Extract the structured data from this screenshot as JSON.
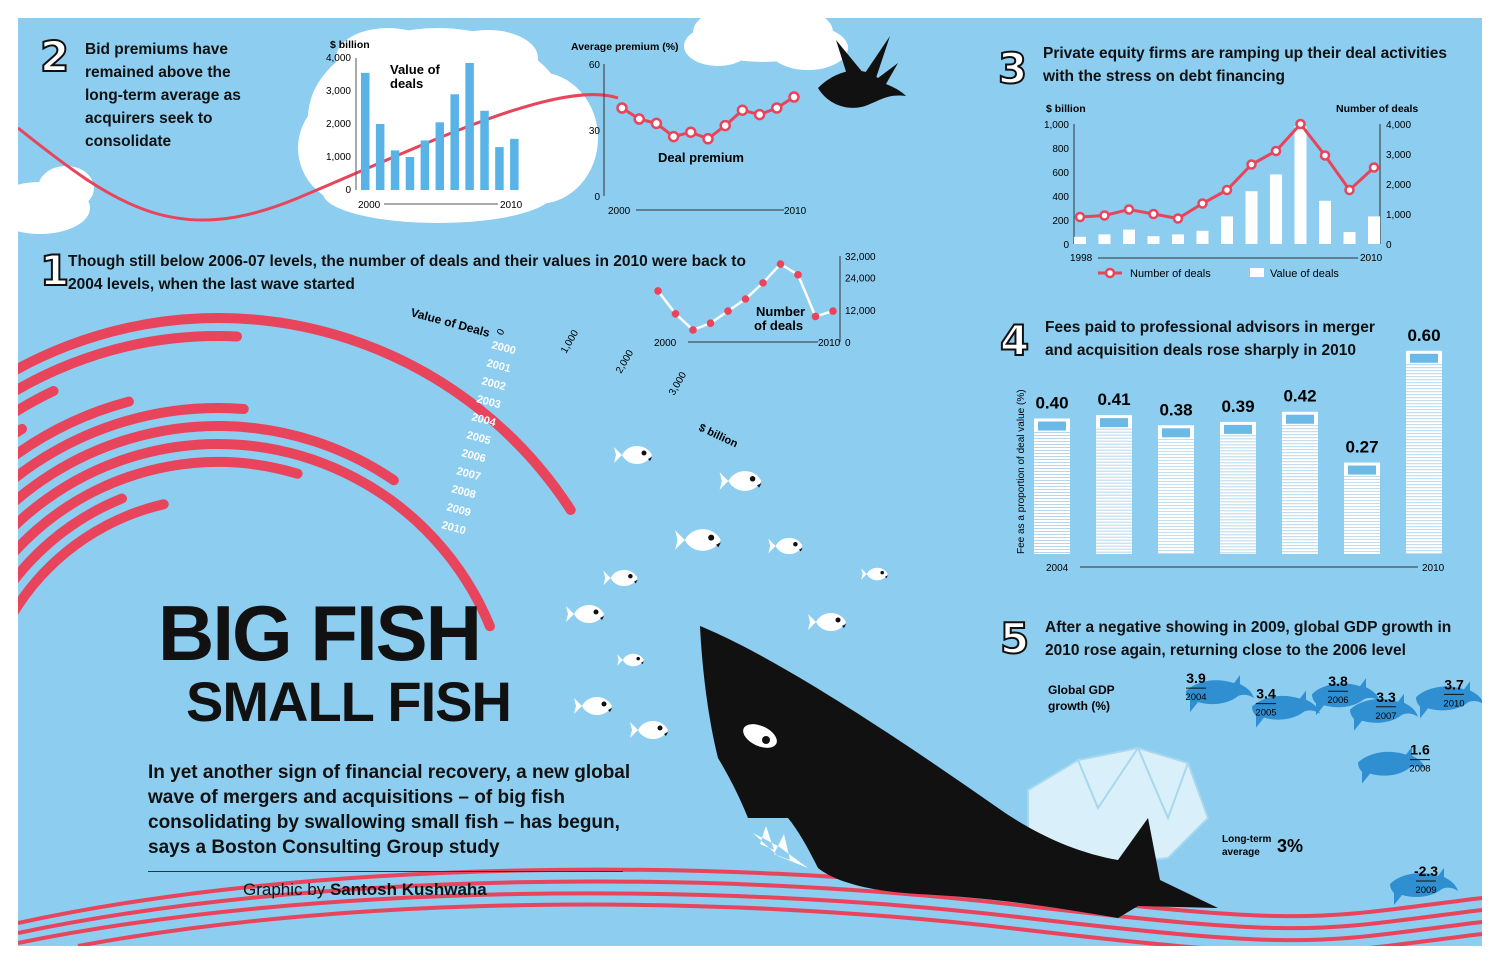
{
  "title": {
    "line1": "BIG FISH",
    "line2": "SMALL FISH"
  },
  "intro": "In yet another sign of financial recovery, a new global wave of mergers and acquisitions – of big fish consolidating by swallowing small fish – has begun, says a Boston Consulting Group study",
  "credit": {
    "prefix": "Graphic by",
    "name": "Santosh Kushwaha"
  },
  "sections": {
    "s1": {
      "number": "1",
      "text": "Though still below 2006-07 levels, the number of deals and their values in 2010 were back to 2004 levels, when the last wave started"
    },
    "s2": {
      "number": "2",
      "text": "Bid premiums have remained above the long-term average as acquirers seek to consolidate"
    },
    "s3": {
      "number": "3",
      "text": "Private equity firms are ramping up their deal activities with the stress on debt financing"
    },
    "s4": {
      "number": "4",
      "text": "Fees paid to professional advisors in merger and acquisition deals rose sharply in 2010"
    },
    "s5": {
      "number": "5",
      "text": "After a negative showing in 2009, global GDP growth in 2010 rose again, returning close to the 2006 level"
    }
  },
  "colors": {
    "background": "#8ccdf0",
    "red": "#e8445c",
    "ink": "#111111",
    "dolphin": "#2f8fd0",
    "white": "#ffffff"
  },
  "chart_data": [
    {
      "id": "value_of_deals_bar",
      "type": "bar",
      "title": "Value of deals",
      "ylabel": "$ billion",
      "x_start_label": "2000",
      "x_end_label": "2010",
      "categories": [
        "2000",
        "2001",
        "2002",
        "2003",
        "2004",
        "2005",
        "2006",
        "2007",
        "2008",
        "2009",
        "2010"
      ],
      "values": [
        3550,
        2000,
        1200,
        1000,
        1500,
        2050,
        2900,
        3850,
        2400,
        1300,
        1550
      ],
      "yticks": [
        "0",
        "1,000",
        "2,000",
        "3,000",
        "4,000"
      ],
      "ylim": [
        0,
        4000
      ]
    },
    {
      "id": "deal_premium_line",
      "type": "line",
      "title": "Average premium (%)",
      "series_label": "Deal premium",
      "x_start_label": "2000",
      "x_end_label": "2010",
      "categories": [
        "2000",
        "2001",
        "2002",
        "2003",
        "2004",
        "2005",
        "2006",
        "2007",
        "2008",
        "2009",
        "2010"
      ],
      "values": [
        40,
        35,
        33,
        27,
        29,
        26,
        32,
        39,
        37,
        40,
        45
      ],
      "yticks": [
        "0",
        "30",
        "60"
      ],
      "ylim": [
        0,
        60
      ]
    },
    {
      "id": "number_of_deals_line",
      "type": "line",
      "series_label": "Number of deals",
      "x_start_label": "2000",
      "x_end_label": "2010",
      "categories": [
        "2000",
        "2001",
        "2002",
        "2003",
        "2004",
        "2005",
        "2006",
        "2007",
        "2008",
        "2009",
        "2010"
      ],
      "values": [
        19000,
        10500,
        4500,
        7000,
        11500,
        16000,
        22000,
        29000,
        25000,
        9500,
        11500
      ],
      "yticks": [
        "0",
        "12,000",
        "24,000",
        "32,000"
      ],
      "ylim": [
        0,
        32000
      ]
    },
    {
      "id": "value_of_deals_arcs",
      "type": "bar",
      "title": "Value of Deals",
      "unit": "$ billion",
      "categories": [
        "2000",
        "2001",
        "2002",
        "2003",
        "2004",
        "2005",
        "2006",
        "2007",
        "2008",
        "2009",
        "2010"
      ],
      "values": [
        3550,
        2000,
        1200,
        1000,
        1500,
        2050,
        2900,
        3850,
        2400,
        1300,
        1550
      ],
      "scale_ticks": [
        "0",
        "1,000",
        "2,000",
        "3,000"
      ]
    },
    {
      "id": "private_equity_combo",
      "type": "bar",
      "x_start_label": "1998",
      "x_end_label": "2010",
      "categories": [
        "1998",
        "1999",
        "2000",
        "2001",
        "2002",
        "2003",
        "2004",
        "2005",
        "2006",
        "2007",
        "2008",
        "2009",
        "2010"
      ],
      "y_left_label": "$ billion",
      "y_left_ticks": [
        "0",
        "200",
        "400",
        "600",
        "800",
        "1,000"
      ],
      "y_left_lim": [
        0,
        1000
      ],
      "y_right_label": "Number of deals",
      "y_right_ticks": [
        "0",
        "1,000",
        "2,000",
        "3,000",
        "4,000"
      ],
      "y_right_lim": [
        0,
        4000
      ],
      "series": [
        {
          "name": "Value of deals",
          "axis": "left",
          "values": [
            60,
            80,
            120,
            65,
            80,
            110,
            230,
            440,
            580,
            980,
            360,
            100,
            230
          ]
        },
        {
          "name": "Number of deals",
          "axis": "right",
          "values": [
            900,
            950,
            1150,
            1000,
            850,
            1350,
            1800,
            2650,
            3100,
            4000,
            2950,
            1800,
            2550
          ]
        }
      ]
    },
    {
      "id": "advisor_fees",
      "type": "bar",
      "ylabel": "Fee as a proportion of deal value (%)",
      "x_start_label": "2004",
      "x_end_label": "2010",
      "categories": [
        "2004",
        "2005",
        "2006",
        "2007",
        "2008",
        "2009",
        "2010"
      ],
      "values": [
        0.4,
        0.41,
        0.38,
        0.39,
        0.42,
        0.27,
        0.6
      ],
      "value_labels": [
        "0.40",
        "0.41",
        "0.38",
        "0.39",
        "0.42",
        "0.27",
        "0.60"
      ]
    },
    {
      "id": "global_gdp",
      "type": "scatter",
      "title": "Global GDP growth (%)",
      "categories": [
        "2004",
        "2005",
        "2006",
        "2007",
        "2008",
        "2009",
        "2010"
      ],
      "values": [
        3.9,
        3.4,
        3.8,
        3.3,
        1.6,
        -2.3,
        3.7
      ],
      "value_labels": [
        "3.9",
        "3.4",
        "3.8",
        "3.3",
        "1.6",
        "-2.3",
        "3.7"
      ],
      "long_term_label": "Long-term average",
      "long_term_value": "3%"
    }
  ]
}
